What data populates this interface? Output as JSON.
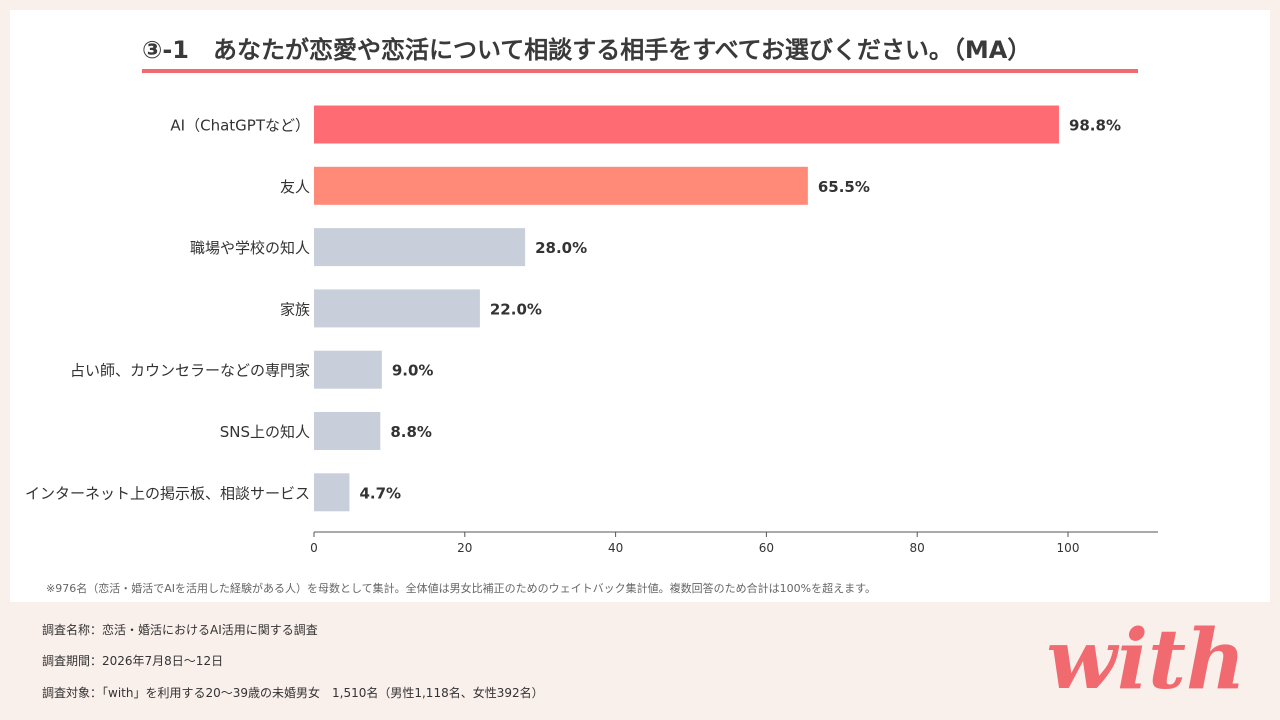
{
  "title": "③-1　あなたが恋愛や恋活について相談する相手をすべてお選びください。（MA）",
  "colors": {
    "accent": "#f06a70",
    "top1": "#ff6b72",
    "top2": "#ff8a78",
    "other": "#c8cfdb",
    "background": "#f9efeb"
  },
  "chart_data": {
    "type": "bar",
    "orientation": "horizontal",
    "categories": [
      "AI（ChatGPTなど）",
      "友人",
      "職場や学校の知人",
      "家族",
      "占い師、カウンセラーなどの専門家",
      "SNS上の知人",
      "インターネット上の掲示板、相談サービス"
    ],
    "values": [
      98.8,
      65.5,
      28.0,
      22.0,
      9.0,
      8.8,
      4.7
    ],
    "value_labels": [
      "98.8%",
      "65.5%",
      "28.0%",
      "22.0%",
      "9.0%",
      "8.8%",
      "4.7%"
    ],
    "xlim": [
      0,
      112
    ],
    "xticks": [
      0,
      20,
      40,
      60,
      80,
      100
    ],
    "grid": false,
    "legend": "none"
  },
  "footnote": "※976名（恋活・婚活でAIを活用した経験がある人）を母数として集計。全体値は男女比補正のためのウェイトバック集計値。複数回答のため合計は100%を超えます。",
  "survey": {
    "name": "調査名称：恋活・婚活におけるAI活用に関する調査",
    "period": "調査期間：2026年7月8日〜12日",
    "target": "調査対象：「with」を利用する20〜39歳の未婚男女　1,510名（男性1,118名、女性392名）"
  },
  "logo": {
    "text": "with",
    "icon": "with-logo-icon"
  }
}
